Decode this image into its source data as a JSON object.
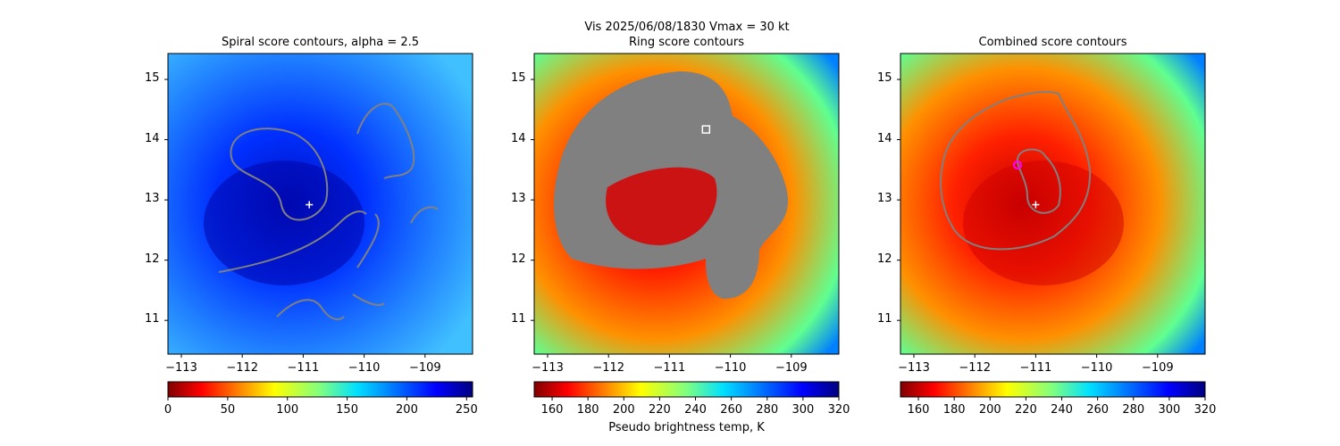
{
  "suptitle": "Vis  2025/06/08/1830    Vmax = 30 kt",
  "colors": {
    "contour": "#808080",
    "plus": "#ffffff",
    "square": "#ffffff",
    "circle": "#ff00ff"
  },
  "chart_data": [
    {
      "type": "heatmap",
      "title": "Spiral score contours, alpha =  2.5",
      "xlim": [
        -113.22,
        -108.22
      ],
      "ylim": [
        10.44,
        15.43
      ],
      "xticks": [
        "−113",
        "−112",
        "−111",
        "−110",
        "−109"
      ],
      "xtick_values": [
        -113,
        -112,
        -111,
        -110,
        -109
      ],
      "yticks": [
        "11",
        "12",
        "13",
        "14",
        "15"
      ],
      "ytick_values": [
        11,
        12,
        13,
        14,
        15
      ],
      "colorbar": {
        "range": [
          0,
          255
        ],
        "ticks": [
          "0",
          "50",
          "100",
          "150",
          "200",
          "250"
        ],
        "tick_values": [
          0,
          50,
          100,
          150,
          200,
          250
        ],
        "colormap": "jet_r",
        "label": ""
      },
      "markers": [
        {
          "type": "plus",
          "lon": -110.9,
          "lat": 12.92
        }
      ]
    },
    {
      "type": "heatmap",
      "title": "Ring score contours",
      "xlim": [
        -113.22,
        -108.22
      ],
      "ylim": [
        10.44,
        15.43
      ],
      "xticks": [
        "−113",
        "−112",
        "−111",
        "−110",
        "−109"
      ],
      "xtick_values": [
        -113,
        -112,
        -111,
        -110,
        -109
      ],
      "yticks": [
        "11",
        "12",
        "13",
        "14",
        "15"
      ],
      "ytick_values": [
        11,
        12,
        13,
        14,
        15
      ],
      "colorbar": {
        "range": [
          150,
          320
        ],
        "ticks": [
          "160",
          "180",
          "200",
          "220",
          "240",
          "260",
          "280",
          "300",
          "320"
        ],
        "tick_values": [
          160,
          180,
          200,
          220,
          240,
          260,
          280,
          300,
          320
        ],
        "colormap": "jet_r",
        "label": "Pseudo brightness temp, K"
      },
      "markers": [
        {
          "type": "square",
          "lon": -110.4,
          "lat": 14.17
        }
      ]
    },
    {
      "type": "heatmap",
      "title": "Combined score contours",
      "xlim": [
        -113.22,
        -108.22
      ],
      "ylim": [
        10.44,
        15.43
      ],
      "xticks": [
        "−113",
        "−112",
        "−111",
        "−110",
        "−109"
      ],
      "xtick_values": [
        -113,
        -112,
        -111,
        -110,
        -109
      ],
      "yticks": [
        "11",
        "12",
        "13",
        "14",
        "15"
      ],
      "ytick_values": [
        11,
        12,
        13,
        14,
        15
      ],
      "colorbar": {
        "range": [
          150,
          320
        ],
        "ticks": [
          "160",
          "180",
          "200",
          "220",
          "240",
          "260",
          "280",
          "300",
          "320"
        ],
        "tick_values": [
          160,
          180,
          200,
          220,
          240,
          260,
          280,
          300,
          320
        ],
        "colormap": "jet_r",
        "label": ""
      },
      "markers": [
        {
          "type": "circle",
          "lon": -111.3,
          "lat": 13.58
        },
        {
          "type": "plus",
          "lon": -111.0,
          "lat": 12.92
        }
      ]
    }
  ]
}
